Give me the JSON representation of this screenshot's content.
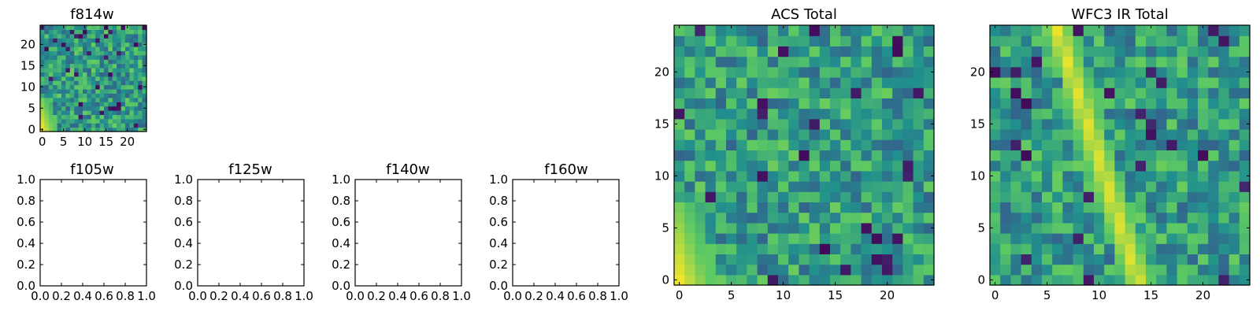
{
  "figure": {
    "colormap": "viridis",
    "colormap_stops": [
      "#440154",
      "#3b528b",
      "#21908d",
      "#5dc963",
      "#fde725"
    ]
  },
  "chart_data": [
    {
      "id": "f814w",
      "type": "heatmap",
      "title": "f814w",
      "grid_size": 25,
      "xlim": [
        -0.5,
        24.5
      ],
      "ylim": [
        -0.5,
        24.5
      ],
      "xticks": [
        0,
        5,
        10,
        15,
        20
      ],
      "yticks": [
        0,
        5,
        10,
        15,
        20
      ],
      "xtick_labels": [
        "0",
        "5",
        "10",
        "15",
        "20"
      ],
      "ytick_labels": [
        "0",
        "5",
        "10",
        "15",
        "20"
      ],
      "value_range": [
        0,
        1
      ],
      "structure": "noise with bright ridge near lower-left corner (x 0-2, y 0-6)"
    },
    {
      "id": "f105w",
      "type": "heatmap",
      "title": "f105w",
      "empty": true,
      "xlim": [
        0.0,
        1.0
      ],
      "ylim": [
        0.0,
        1.0
      ],
      "xticks": [
        0.0,
        0.2,
        0.4,
        0.6,
        0.8,
        1.0
      ],
      "yticks": [
        0.0,
        0.2,
        0.4,
        0.6,
        0.8,
        1.0
      ],
      "xtick_labels": [
        "0.0",
        "0.2",
        "0.4",
        "0.6",
        "0.8",
        "1.0"
      ],
      "ytick_labels": [
        "0.0",
        "0.2",
        "0.4",
        "0.6",
        "0.8",
        "1.0"
      ]
    },
    {
      "id": "f125w",
      "type": "heatmap",
      "title": "f125w",
      "empty": true,
      "xlim": [
        0.0,
        1.0
      ],
      "ylim": [
        0.0,
        1.0
      ],
      "xticks": [
        0.0,
        0.2,
        0.4,
        0.6,
        0.8,
        1.0
      ],
      "yticks": [
        0.0,
        0.2,
        0.4,
        0.6,
        0.8,
        1.0
      ],
      "xtick_labels": [
        "0.0",
        "0.2",
        "0.4",
        "0.6",
        "0.8",
        "1.0"
      ],
      "ytick_labels": [
        "0.0",
        "0.2",
        "0.4",
        "0.6",
        "0.8",
        "1.0"
      ]
    },
    {
      "id": "f140w",
      "type": "heatmap",
      "title": "f140w",
      "empty": true,
      "xlim": [
        0.0,
        1.0
      ],
      "ylim": [
        0.0,
        1.0
      ],
      "xticks": [
        0.0,
        0.2,
        0.4,
        0.6,
        0.8,
        1.0
      ],
      "yticks": [
        0.0,
        0.2,
        0.4,
        0.6,
        0.8,
        1.0
      ],
      "xtick_labels": [
        "0.0",
        "0.2",
        "0.4",
        "0.6",
        "0.8",
        "1.0"
      ],
      "ytick_labels": [
        "0.0",
        "0.2",
        "0.4",
        "0.6",
        "0.8",
        "1.0"
      ]
    },
    {
      "id": "f160w",
      "type": "heatmap",
      "title": "f160w",
      "empty": true,
      "xlim": [
        0.0,
        1.0
      ],
      "ylim": [
        0.0,
        1.0
      ],
      "xticks": [
        0.0,
        0.2,
        0.4,
        0.6,
        0.8,
        1.0
      ],
      "yticks": [
        0.0,
        0.2,
        0.4,
        0.6,
        0.8,
        1.0
      ],
      "xtick_labels": [
        "0.0",
        "0.2",
        "0.4",
        "0.6",
        "0.8",
        "1.0"
      ],
      "ytick_labels": [
        "0.0",
        "0.2",
        "0.4",
        "0.6",
        "0.8",
        "1.0"
      ]
    },
    {
      "id": "acs_total",
      "type": "heatmap",
      "title": "ACS Total",
      "grid_size": 25,
      "xlim": [
        -0.5,
        24.5
      ],
      "ylim": [
        -0.5,
        24.5
      ],
      "xticks": [
        0,
        5,
        10,
        15,
        20
      ],
      "yticks": [
        0,
        5,
        10,
        15,
        20
      ],
      "xtick_labels": [
        "0",
        "5",
        "10",
        "15",
        "20"
      ],
      "ytick_labels": [
        "0",
        "5",
        "10",
        "15",
        "20"
      ],
      "value_range": [
        0,
        1
      ],
      "structure": "noise with bright ridge near lower-left corner (x 0-2, y 0-6)"
    },
    {
      "id": "wfc3_ir_total",
      "type": "heatmap",
      "title": "WFC3 IR Total",
      "grid_size": 25,
      "xlim": [
        -0.5,
        24.5
      ],
      "ylim": [
        -0.5,
        24.5
      ],
      "xticks": [
        0,
        5,
        10,
        15,
        20
      ],
      "yticks": [
        0,
        5,
        10,
        15,
        20
      ],
      "xtick_labels": [
        "0",
        "5",
        "10",
        "15",
        "20"
      ],
      "ytick_labels": [
        "0",
        "5",
        "10",
        "15",
        "20"
      ],
      "value_range": [
        0,
        1
      ],
      "structure": "noise with bright diagonal streak from (x 6, y 24) to (x 14, y 0)"
    }
  ]
}
